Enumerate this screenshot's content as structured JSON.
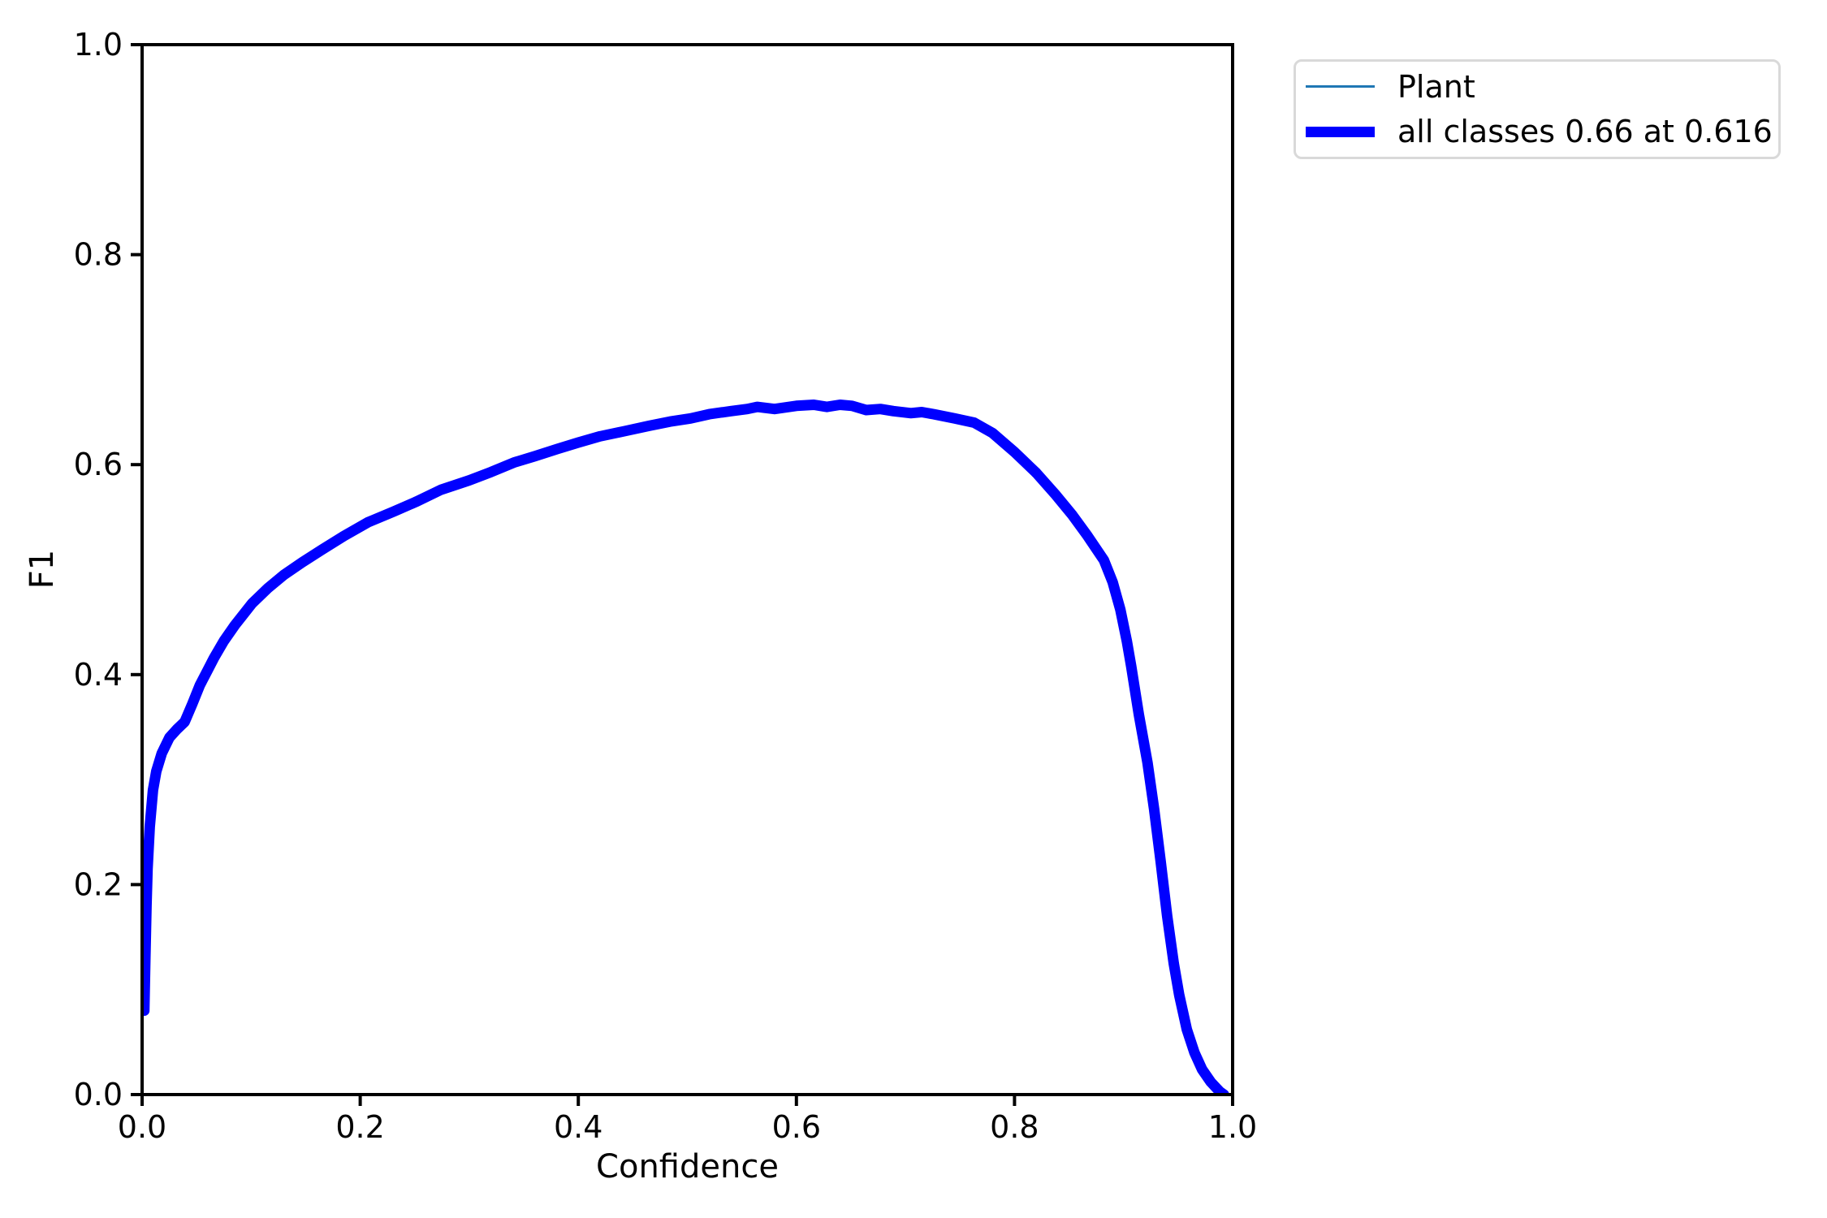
{
  "chart_data": {
    "type": "line",
    "title": "",
    "xlabel": "Confidence",
    "ylabel": "F1",
    "xlim": [
      0.0,
      1.0
    ],
    "ylim": [
      0.0,
      1.0
    ],
    "grid": false,
    "x_ticks": [
      "0.0",
      "0.2",
      "0.4",
      "0.6",
      "0.8",
      "1.0"
    ],
    "y_ticks": [
      "0.0",
      "0.2",
      "0.4",
      "0.6",
      "0.8",
      "1.0"
    ],
    "legend": {
      "position": "outside-upper-right",
      "entries": [
        {
          "label": "Plant",
          "color": "#1f77b4",
          "linewidth": 3
        },
        {
          "label": "all classes 0.66 at 0.616",
          "color": "#0000ff",
          "linewidth": 13
        }
      ]
    },
    "series": [
      {
        "name": "Plant",
        "color": "#1f77b4",
        "linewidth": 3,
        "uses_points": "shared"
      },
      {
        "name": "all classes 0.66 at 0.616",
        "color": "#0000ff",
        "linewidth": 13,
        "uses_points": "shared"
      }
    ],
    "points": [
      [
        0.002,
        0.08
      ],
      [
        0.003,
        0.13
      ],
      [
        0.004,
        0.18
      ],
      [
        0.005,
        0.215
      ],
      [
        0.007,
        0.255
      ],
      [
        0.01,
        0.29
      ],
      [
        0.013,
        0.308
      ],
      [
        0.018,
        0.325
      ],
      [
        0.025,
        0.34
      ],
      [
        0.032,
        0.348
      ],
      [
        0.039,
        0.355
      ],
      [
        0.046,
        0.372
      ],
      [
        0.053,
        0.39
      ],
      [
        0.06,
        0.404
      ],
      [
        0.066,
        0.416
      ],
      [
        0.075,
        0.432
      ],
      [
        0.085,
        0.447
      ],
      [
        0.101,
        0.468
      ],
      [
        0.115,
        0.482
      ],
      [
        0.13,
        0.495
      ],
      [
        0.147,
        0.507
      ],
      [
        0.165,
        0.519
      ],
      [
        0.185,
        0.532
      ],
      [
        0.207,
        0.545
      ],
      [
        0.23,
        0.555
      ],
      [
        0.252,
        0.565
      ],
      [
        0.274,
        0.576
      ],
      [
        0.3,
        0.585
      ],
      [
        0.32,
        0.593
      ],
      [
        0.341,
        0.602
      ],
      [
        0.36,
        0.608
      ],
      [
        0.381,
        0.615
      ],
      [
        0.4,
        0.621
      ],
      [
        0.42,
        0.627
      ],
      [
        0.443,
        0.632
      ],
      [
        0.465,
        0.637
      ],
      [
        0.484,
        0.641
      ],
      [
        0.503,
        0.644
      ],
      [
        0.52,
        0.648
      ],
      [
        0.54,
        0.651
      ],
      [
        0.555,
        0.653
      ],
      [
        0.564,
        0.655
      ],
      [
        0.58,
        0.653
      ],
      [
        0.6,
        0.656
      ],
      [
        0.616,
        0.657
      ],
      [
        0.628,
        0.655
      ],
      [
        0.64,
        0.657
      ],
      [
        0.651,
        0.656
      ],
      [
        0.664,
        0.652
      ],
      [
        0.677,
        0.653
      ],
      [
        0.689,
        0.651
      ],
      [
        0.705,
        0.649
      ],
      [
        0.715,
        0.65
      ],
      [
        0.726,
        0.648
      ],
      [
        0.745,
        0.644
      ],
      [
        0.763,
        0.64
      ],
      [
        0.78,
        0.63
      ],
      [
        0.8,
        0.612
      ],
      [
        0.82,
        0.592
      ],
      [
        0.838,
        0.571
      ],
      [
        0.853,
        0.552
      ],
      [
        0.867,
        0.532
      ],
      [
        0.882,
        0.509
      ],
      [
        0.89,
        0.488
      ],
      [
        0.897,
        0.462
      ],
      [
        0.903,
        0.432
      ],
      [
        0.907,
        0.408
      ],
      [
        0.914,
        0.362
      ],
      [
        0.922,
        0.316
      ],
      [
        0.928,
        0.272
      ],
      [
        0.934,
        0.222
      ],
      [
        0.94,
        0.17
      ],
      [
        0.946,
        0.125
      ],
      [
        0.951,
        0.095
      ],
      [
        0.958,
        0.062
      ],
      [
        0.965,
        0.04
      ],
      [
        0.972,
        0.024
      ],
      [
        0.98,
        0.012
      ],
      [
        0.988,
        0.003
      ],
      [
        0.992,
        0.0
      ]
    ],
    "best": {
      "f1": "0.66",
      "confidence": "0.616"
    }
  }
}
